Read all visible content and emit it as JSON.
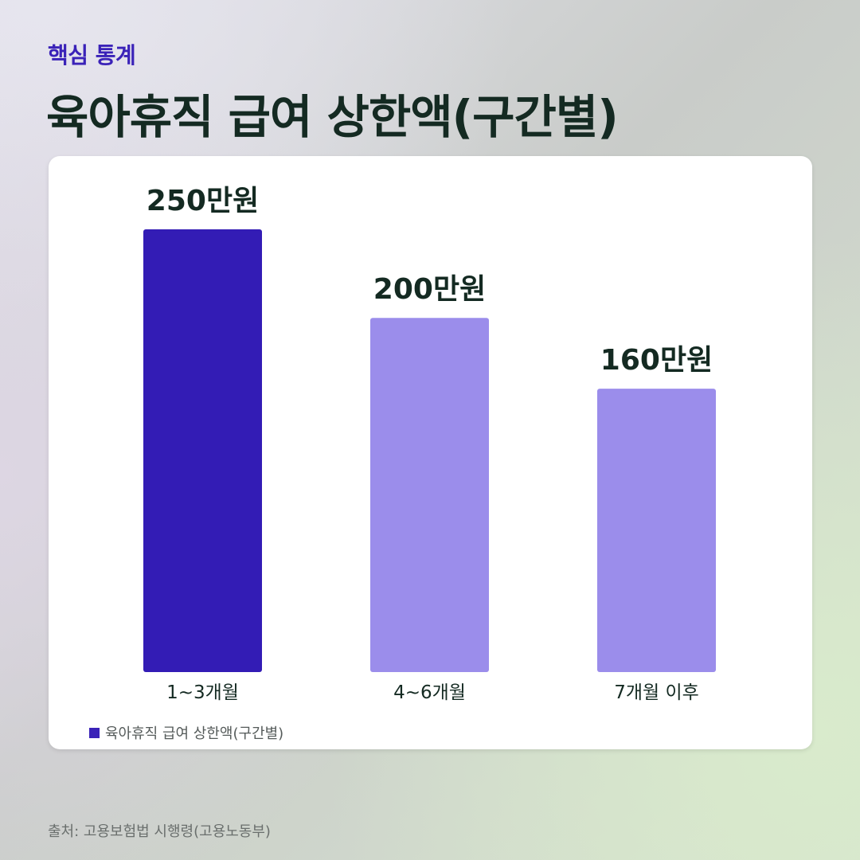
{
  "header": {
    "eyebrow": "핵심 통계",
    "title": "육아휴직 급여 상한액(구간별)"
  },
  "chart_data": {
    "type": "bar",
    "categories": [
      "1~3개월",
      "4~6개월",
      "7개월 이후"
    ],
    "values": [
      250,
      200,
      160
    ],
    "value_unit": "만원",
    "data_labels": [
      "250만원",
      "200만원",
      "160만원"
    ],
    "legend": "육아휴직 급여 상한액(구간별)",
    "legend_position": "bottom-left",
    "grid": false,
    "ylim": [
      0,
      250
    ],
    "colors": {
      "highlight": "#331cb5",
      "default": "#9b8deb",
      "label_text": "#142a22"
    }
  },
  "footer": {
    "source": "출처: 고용보험법 시행령(고용노동부)"
  }
}
